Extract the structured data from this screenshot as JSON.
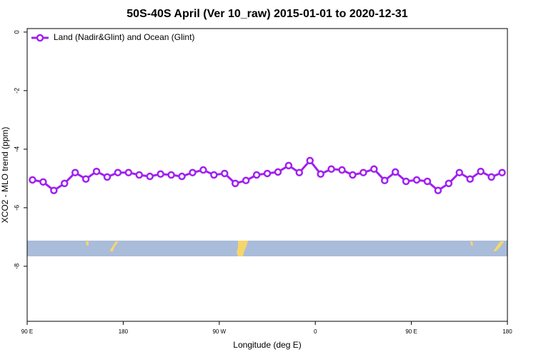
{
  "chart_data": {
    "type": "line",
    "title": "50S-40S April (Ver 10_raw)   2015-01-01 to 2020-12-31",
    "x_label": "Longitude (deg E)",
    "y_label": "XCO2 - MLO trend (ppm)",
    "x": [
      95,
      105,
      115,
      125,
      135,
      145,
      155,
      165,
      175,
      185,
      195,
      205,
      215,
      225,
      235,
      245,
      255,
      265,
      275,
      285,
      295,
      305,
      315,
      325,
      335,
      345,
      355,
      365,
      375,
      385,
      395,
      405,
      415,
      425,
      435,
      445,
      455,
      465,
      475,
      485,
      495,
      505,
      515,
      525,
      535
    ],
    "series": [
      {
        "name": "Land (Nadir&Glint) and Ocean (Glint)",
        "color": "#a020f0",
        "values": [
          -5.05,
          -5.12,
          -5.41,
          -5.17,
          -4.8,
          -5.02,
          -4.76,
          -4.95,
          -4.8,
          -4.8,
          -4.88,
          -4.93,
          -4.85,
          -4.88,
          -4.93,
          -4.8,
          -4.71,
          -4.88,
          -4.83,
          -5.17,
          -5.07,
          -4.88,
          -4.83,
          -4.78,
          -4.56,
          -4.8,
          -4.39,
          -4.85,
          -4.68,
          -4.71,
          -4.88,
          -4.8,
          -4.68,
          -5.07,
          -4.78,
          -5.1,
          -5.05,
          -5.1,
          -5.41,
          -5.17,
          -4.8,
          -5.02,
          -4.76,
          -4.95,
          -4.8
        ]
      }
    ],
    "xlim": [
      90,
      540
    ],
    "xticks": [
      {
        "value": 90,
        "label": "90 E"
      },
      {
        "value": 180,
        "label": "180"
      },
      {
        "value": 270,
        "label": "90 W"
      },
      {
        "value": 360,
        "label": "0"
      },
      {
        "value": 450,
        "label": "90 E"
      },
      {
        "value": 540,
        "label": "180"
      }
    ],
    "ylim": [
      -9.88,
      0.12
    ],
    "yticks": [
      0,
      -2,
      -4,
      -6,
      -8
    ],
    "legend": "top-left"
  }
}
